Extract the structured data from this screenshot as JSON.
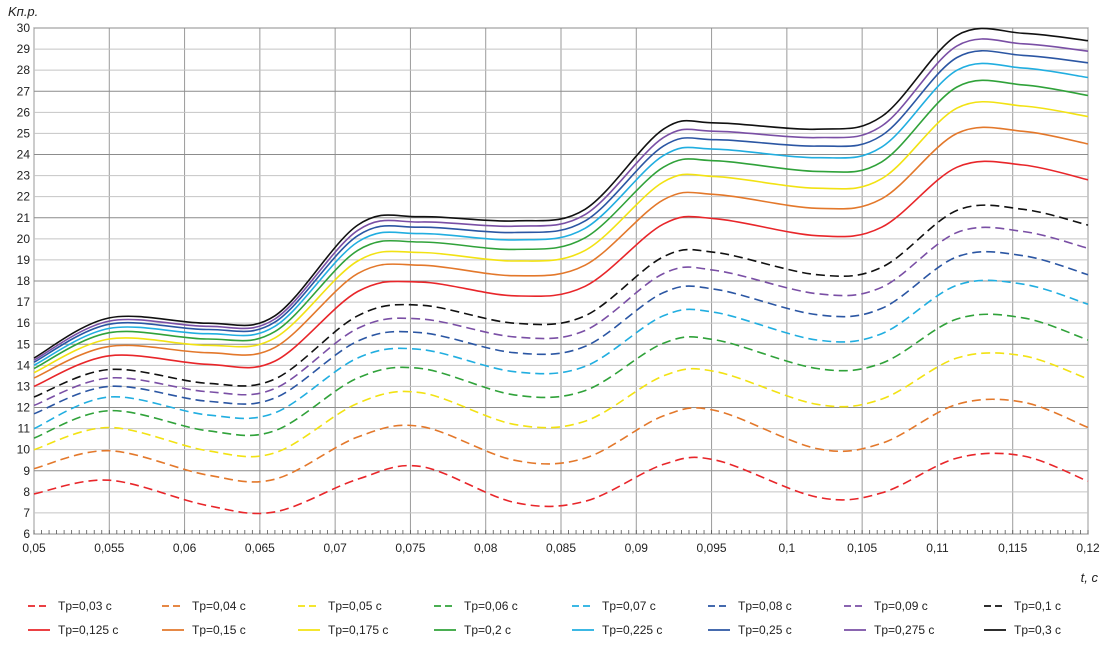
{
  "chart_data": {
    "type": "line",
    "xlabel": "t, c",
    "ylabel": "Kп.р.",
    "xlim": [
      0.05,
      0.12
    ],
    "ylim": [
      6,
      30
    ],
    "grid": true,
    "legend_position": "bottom",
    "x_ticks": [
      "0,05",
      "0,055",
      "0,06",
      "0,065",
      "0,07",
      "0,075",
      "0,08",
      "0,085",
      "0,09",
      "0,095",
      "0,1",
      "0,105",
      "0,11",
      "0,115",
      "0,12"
    ],
    "y_ticks": [
      "6",
      "7",
      "8",
      "9",
      "10",
      "11",
      "12",
      "13",
      "14",
      "15",
      "16",
      "17",
      "18",
      "19",
      "20",
      "21",
      "22",
      "23",
      "24",
      "25",
      "26",
      "27",
      "28",
      "29",
      "30"
    ],
    "x": [
      0.05,
      0.055,
      0.0615,
      0.066,
      0.0715,
      0.0757,
      0.0819,
      0.0866,
      0.0918,
      0.0953,
      0.102,
      0.1063,
      0.1113,
      0.1157,
      0.12
    ],
    "series": [
      {
        "name": "Tp=0,03 c",
        "color": "#e8262a",
        "dash": true,
        "values": [
          7.9,
          8.55,
          7.35,
          7.05,
          8.6,
          9.2,
          7.5,
          7.55,
          9.3,
          9.5,
          7.75,
          7.95,
          9.6,
          9.7,
          8.5
        ]
      },
      {
        "name": "Tp=0,04 c",
        "color": "#e3782b",
        "dash": true,
        "values": [
          9.1,
          9.95,
          8.8,
          8.6,
          10.6,
          11.1,
          9.5,
          9.6,
          11.6,
          11.85,
          10.05,
          10.3,
          12.15,
          12.25,
          11.05
        ]
      },
      {
        "name": "Tp=0,05 c",
        "color": "#f2e213",
        "dash": true,
        "values": [
          10.0,
          11.05,
          9.95,
          9.85,
          12.2,
          12.7,
          11.2,
          11.35,
          13.5,
          13.7,
          12.15,
          12.4,
          14.35,
          14.45,
          13.35
        ]
      },
      {
        "name": "Tp=0,06 c",
        "color": "#30a23a",
        "dash": true,
        "values": [
          10.55,
          11.85,
          10.9,
          10.9,
          13.4,
          13.85,
          12.6,
          12.8,
          15.05,
          15.2,
          13.85,
          14.1,
          16.2,
          16.25,
          15.2
        ]
      },
      {
        "name": "Tp=0,07 c",
        "color": "#21aee0",
        "dash": true,
        "values": [
          11.0,
          12.5,
          11.65,
          11.75,
          14.35,
          14.75,
          13.7,
          13.95,
          16.35,
          16.5,
          15.2,
          15.5,
          17.8,
          17.85,
          16.9
        ]
      },
      {
        "name": "Tp=0,08 c",
        "color": "#2b56a3",
        "dash": true,
        "values": [
          11.7,
          13.0,
          12.3,
          12.45,
          15.15,
          15.55,
          14.6,
          14.9,
          17.45,
          17.6,
          16.4,
          16.7,
          19.15,
          19.2,
          18.3
        ]
      },
      {
        "name": "Tp=0,09 c",
        "color": "#7a4fa5",
        "dash": true,
        "values": [
          12.1,
          13.4,
          12.75,
          12.9,
          15.75,
          16.2,
          15.35,
          15.65,
          18.35,
          18.5,
          17.4,
          17.7,
          20.3,
          20.35,
          19.55
        ]
      },
      {
        "name": "Tp=0,1 c",
        "color": "#111111",
        "dash": true,
        "values": [
          12.5,
          13.8,
          13.15,
          13.35,
          16.35,
          16.85,
          16.0,
          16.35,
          19.15,
          19.35,
          18.3,
          18.65,
          21.35,
          21.4,
          20.65
        ]
      },
      {
        "name": "Tp=0,125 c",
        "color": "#e8262a",
        "dash": false,
        "values": [
          13.0,
          14.45,
          14.05,
          14.2,
          17.5,
          17.95,
          17.3,
          17.75,
          20.7,
          20.95,
          20.15,
          20.55,
          23.4,
          23.5,
          22.8
        ]
      },
      {
        "name": "Tp=0,15 c",
        "color": "#e3782b",
        "dash": false,
        "values": [
          13.4,
          14.9,
          14.6,
          14.85,
          18.35,
          18.75,
          18.25,
          18.75,
          21.85,
          22.1,
          21.45,
          21.9,
          25.0,
          25.1,
          24.5
        ]
      },
      {
        "name": "Tp=0,175 c",
        "color": "#f2e213",
        "dash": false,
        "values": [
          13.65,
          15.25,
          14.95,
          15.3,
          18.95,
          19.35,
          18.95,
          19.45,
          22.7,
          22.95,
          22.4,
          22.85,
          26.2,
          26.3,
          25.8
        ]
      },
      {
        "name": "Tp=0,2 c",
        "color": "#30a23a",
        "dash": false,
        "values": [
          13.85,
          15.55,
          15.25,
          15.6,
          19.45,
          19.85,
          19.5,
          20.05,
          23.4,
          23.7,
          23.2,
          23.65,
          27.2,
          27.3,
          26.8
        ]
      },
      {
        "name": "Tp=0,225 c",
        "color": "#21aee0",
        "dash": false,
        "values": [
          14.0,
          15.75,
          15.5,
          15.85,
          19.85,
          20.25,
          19.95,
          20.5,
          23.95,
          24.25,
          23.85,
          24.35,
          28.0,
          28.1,
          27.65
        ]
      },
      {
        "name": "Tp=0,25 c",
        "color": "#2b56a3",
        "dash": false,
        "values": [
          14.15,
          15.95,
          15.7,
          16.05,
          20.15,
          20.55,
          20.3,
          20.85,
          24.4,
          24.7,
          24.4,
          24.9,
          28.6,
          28.7,
          28.35
        ]
      },
      {
        "name": "Tp=0,275 c",
        "color": "#7a4fa5",
        "dash": false,
        "values": [
          14.25,
          16.1,
          15.85,
          16.2,
          20.4,
          20.8,
          20.6,
          21.15,
          24.8,
          25.1,
          24.8,
          25.35,
          29.15,
          29.25,
          28.9
        ]
      },
      {
        "name": "Tp=0,3 c",
        "color": "#111111",
        "dash": false,
        "values": [
          14.35,
          16.25,
          16.0,
          16.35,
          20.65,
          21.05,
          20.85,
          21.4,
          25.2,
          25.5,
          25.2,
          25.8,
          29.65,
          29.75,
          29.4
        ]
      }
    ]
  }
}
